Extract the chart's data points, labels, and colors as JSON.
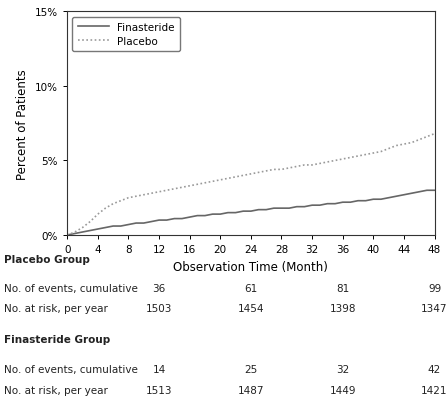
{
  "xlabel": "Observation Time (Month)",
  "ylabel": "Percent of Patients",
  "xlim": [
    0,
    48
  ],
  "ylim": [
    0,
    0.15
  ],
  "yticks": [
    0,
    0.05,
    0.1,
    0.15
  ],
  "ytick_labels": [
    "0%",
    "5%",
    "10%",
    "15%"
  ],
  "xticks": [
    0,
    4,
    8,
    12,
    16,
    20,
    24,
    28,
    32,
    36,
    40,
    44,
    48
  ],
  "finasteride_color": "#666666",
  "placebo_color": "#999999",
  "finasteride_x": [
    0,
    1,
    2,
    3,
    4,
    5,
    6,
    7,
    8,
    9,
    10,
    11,
    12,
    13,
    14,
    15,
    16,
    17,
    18,
    19,
    20,
    21,
    22,
    23,
    24,
    25,
    26,
    27,
    28,
    29,
    30,
    31,
    32,
    33,
    34,
    35,
    36,
    37,
    38,
    39,
    40,
    41,
    42,
    43,
    44,
    45,
    46,
    47,
    48
  ],
  "finasteride_y": [
    0,
    0.001,
    0.002,
    0.003,
    0.004,
    0.005,
    0.006,
    0.006,
    0.007,
    0.008,
    0.008,
    0.009,
    0.01,
    0.01,
    0.011,
    0.011,
    0.012,
    0.013,
    0.013,
    0.014,
    0.014,
    0.015,
    0.015,
    0.016,
    0.016,
    0.017,
    0.017,
    0.018,
    0.018,
    0.018,
    0.019,
    0.019,
    0.02,
    0.02,
    0.021,
    0.021,
    0.022,
    0.022,
    0.023,
    0.023,
    0.024,
    0.024,
    0.025,
    0.026,
    0.027,
    0.028,
    0.029,
    0.03,
    0.03
  ],
  "placebo_x": [
    0,
    1,
    2,
    3,
    4,
    5,
    6,
    7,
    8,
    9,
    10,
    11,
    12,
    13,
    14,
    15,
    16,
    17,
    18,
    19,
    20,
    21,
    22,
    23,
    24,
    25,
    26,
    27,
    28,
    29,
    30,
    31,
    32,
    33,
    34,
    35,
    36,
    37,
    38,
    39,
    40,
    41,
    42,
    43,
    44,
    45,
    46,
    47,
    48
  ],
  "placebo_y": [
    0,
    0.002,
    0.005,
    0.009,
    0.014,
    0.018,
    0.021,
    0.023,
    0.025,
    0.026,
    0.027,
    0.028,
    0.029,
    0.03,
    0.031,
    0.032,
    0.033,
    0.034,
    0.035,
    0.036,
    0.037,
    0.038,
    0.039,
    0.04,
    0.041,
    0.042,
    0.043,
    0.044,
    0.044,
    0.045,
    0.046,
    0.047,
    0.047,
    0.048,
    0.049,
    0.05,
    0.051,
    0.052,
    0.053,
    0.054,
    0.055,
    0.056,
    0.058,
    0.06,
    0.061,
    0.062,
    0.064,
    0.066,
    0.068
  ],
  "table_columns_months": [
    12,
    24,
    36,
    48
  ],
  "placebo_group_label": "Placebo Group",
  "placebo_events_label": "No. of events, cumulative",
  "placebo_events": [
    36,
    61,
    81,
    99
  ],
  "placebo_risk_label": "No. at risk, per year",
  "placebo_risk": [
    1503,
    1454,
    1398,
    1347
  ],
  "finasteride_group_label": "Finasteride Group",
  "finasteride_events_label": "No. of events, cumulative",
  "finasteride_events": [
    14,
    25,
    32,
    42
  ],
  "finasteride_risk_label": "No. at risk, per year",
  "finasteride_risk": [
    1513,
    1487,
    1449,
    1421
  ],
  "legend_finasteride": "Finasteride",
  "legend_placebo": "Placebo",
  "bg_color": "#ffffff",
  "plot_bg_color": "#ffffff",
  "text_color": "#222222"
}
